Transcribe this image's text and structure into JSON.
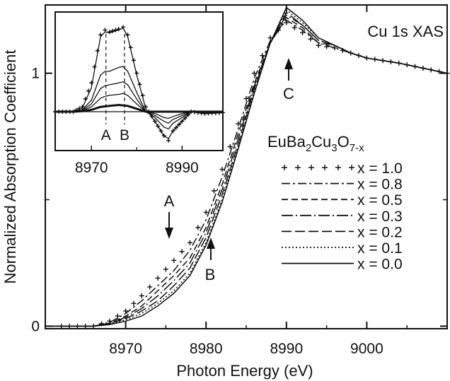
{
  "chart_data": {
    "type": "line",
    "xlabel": "Photon Energy (eV)",
    "ylabel": "Normalized Absorption Coefficient",
    "annotation_title": "Cu 1s XAS",
    "xlim": [
      8960,
      9010
    ],
    "ylim": [
      -0.01,
      1.27
    ],
    "x_ticks": [
      "8970",
      "8980",
      "8990",
      "9000"
    ],
    "y_ticks": [
      "0",
      "1"
    ],
    "arrow_labels": [
      "A",
      "B",
      "C"
    ],
    "legend_title": {
      "base": "EuBa",
      "s1": "2",
      "mid1": "Cu",
      "s2": "3",
      "mid2": "O",
      "s3": "7-x"
    },
    "series": [
      {
        "name": "x = 1.0",
        "style": "plus",
        "points": [
          [
            8960,
            0.0
          ],
          [
            8966,
            0.0
          ],
          [
            8968,
            0.02
          ],
          [
            8970,
            0.06
          ],
          [
            8972,
            0.12
          ],
          [
            8974,
            0.19
          ],
          [
            8976,
            0.26
          ],
          [
            8978,
            0.33
          ],
          [
            8980,
            0.45
          ],
          [
            8982,
            0.62
          ],
          [
            8984,
            0.8
          ],
          [
            8986,
            1.0
          ],
          [
            8988,
            1.14
          ],
          [
            8990,
            1.2
          ],
          [
            8992,
            1.16
          ],
          [
            8994,
            1.11
          ],
          [
            8996,
            1.1
          ],
          [
            8998,
            1.08
          ],
          [
            9000,
            1.06
          ],
          [
            9004,
            1.04
          ],
          [
            9010,
            1.0
          ]
        ]
      },
      {
        "name": "x = 0.8",
        "style": "dashdot",
        "points": [
          [
            8960,
            0.0
          ],
          [
            8966,
            0.0
          ],
          [
            8968,
            0.015
          ],
          [
            8970,
            0.05
          ],
          [
            8972,
            0.1
          ],
          [
            8974,
            0.16
          ],
          [
            8976,
            0.22
          ],
          [
            8978,
            0.3
          ],
          [
            8980,
            0.42
          ],
          [
            8982,
            0.59
          ],
          [
            8984,
            0.78
          ],
          [
            8986,
            0.98
          ],
          [
            8988,
            1.13
          ],
          [
            8990,
            1.21
          ],
          [
            8992,
            1.17
          ],
          [
            8994,
            1.12
          ],
          [
            8996,
            1.1
          ],
          [
            8998,
            1.08
          ],
          [
            9000,
            1.06
          ],
          [
            9004,
            1.04
          ],
          [
            9010,
            1.0
          ]
        ]
      },
      {
        "name": "x = 0.5",
        "style": "longdash",
        "points": [
          [
            8960,
            0.0
          ],
          [
            8966,
            0.0
          ],
          [
            8968,
            0.012
          ],
          [
            8970,
            0.04
          ],
          [
            8972,
            0.08
          ],
          [
            8974,
            0.14
          ],
          [
            8976,
            0.2
          ],
          [
            8978,
            0.27
          ],
          [
            8980,
            0.39
          ],
          [
            8982,
            0.56
          ],
          [
            8984,
            0.76
          ],
          [
            8986,
            0.96
          ],
          [
            8988,
            1.12
          ],
          [
            8990,
            1.22
          ],
          [
            8992,
            1.18
          ],
          [
            8994,
            1.12
          ],
          [
            8996,
            1.11
          ],
          [
            8998,
            1.08
          ],
          [
            9000,
            1.06
          ],
          [
            9004,
            1.04
          ],
          [
            9010,
            1.0
          ]
        ]
      },
      {
        "name": "x = 0.3",
        "style": "dashdot2",
        "points": [
          [
            8960,
            0.0
          ],
          [
            8966,
            0.0
          ],
          [
            8968,
            0.01
          ],
          [
            8970,
            0.035
          ],
          [
            8972,
            0.07
          ],
          [
            8974,
            0.12
          ],
          [
            8976,
            0.18
          ],
          [
            8978,
            0.25
          ],
          [
            8980,
            0.37
          ],
          [
            8982,
            0.54
          ],
          [
            8984,
            0.74
          ],
          [
            8986,
            0.95
          ],
          [
            8988,
            1.12
          ],
          [
            8990,
            1.23
          ],
          [
            8992,
            1.19
          ],
          [
            8994,
            1.13
          ],
          [
            8996,
            1.11
          ],
          [
            8998,
            1.08
          ],
          [
            9000,
            1.06
          ],
          [
            9004,
            1.04
          ],
          [
            9010,
            1.0
          ]
        ]
      },
      {
        "name": "x = 0.2",
        "style": "dash",
        "points": [
          [
            8960,
            0.0
          ],
          [
            8966,
            0.0
          ],
          [
            8968,
            0.01
          ],
          [
            8970,
            0.03
          ],
          [
            8972,
            0.06
          ],
          [
            8974,
            0.1
          ],
          [
            8976,
            0.16
          ],
          [
            8978,
            0.23
          ],
          [
            8980,
            0.35
          ],
          [
            8982,
            0.52
          ],
          [
            8984,
            0.72
          ],
          [
            8986,
            0.94
          ],
          [
            8988,
            1.12
          ],
          [
            8990,
            1.24
          ],
          [
            8992,
            1.19
          ],
          [
            8994,
            1.13
          ],
          [
            8996,
            1.11
          ],
          [
            8998,
            1.08
          ],
          [
            9000,
            1.06
          ],
          [
            9004,
            1.04
          ],
          [
            9010,
            1.0
          ]
        ]
      },
      {
        "name": "x = 0.1",
        "style": "dotted",
        "points": [
          [
            8960,
            0.0
          ],
          [
            8966,
            0.0
          ],
          [
            8968,
            0.008
          ],
          [
            8970,
            0.025
          ],
          [
            8972,
            0.05
          ],
          [
            8974,
            0.09
          ],
          [
            8976,
            0.14
          ],
          [
            8978,
            0.21
          ],
          [
            8980,
            0.33
          ],
          [
            8982,
            0.5
          ],
          [
            8984,
            0.71
          ],
          [
            8986,
            0.93
          ],
          [
            8988,
            1.12
          ],
          [
            8990,
            1.25
          ],
          [
            8992,
            1.2
          ],
          [
            8994,
            1.14
          ],
          [
            8996,
            1.11
          ],
          [
            8998,
            1.08
          ],
          [
            9000,
            1.06
          ],
          [
            9004,
            1.04
          ],
          [
            9010,
            1.0
          ]
        ]
      },
      {
        "name": "x = 0.0",
        "style": "solid",
        "points": [
          [
            8960,
            0.0
          ],
          [
            8966,
            0.0
          ],
          [
            8968,
            0.006
          ],
          [
            8970,
            0.02
          ],
          [
            8972,
            0.04
          ],
          [
            8974,
            0.08
          ],
          [
            8976,
            0.13
          ],
          [
            8978,
            0.2
          ],
          [
            8980,
            0.32
          ],
          [
            8982,
            0.49
          ],
          [
            8984,
            0.7
          ],
          [
            8986,
            0.92
          ],
          [
            8988,
            1.12
          ],
          [
            8990,
            1.26
          ],
          [
            8992,
            1.21
          ],
          [
            8994,
            1.14
          ],
          [
            8996,
            1.11
          ],
          [
            8998,
            1.08
          ],
          [
            9000,
            1.06
          ],
          [
            9004,
            1.04
          ],
          [
            9010,
            1.0
          ]
        ]
      }
    ],
    "inset": {
      "type": "line",
      "xlim": [
        8962,
        8999
      ],
      "x_ticks": [
        "8970",
        "8990"
      ],
      "markers": [
        "A",
        "B"
      ],
      "series": [
        {
          "style": "plus",
          "points": [
            [
              8962,
              0
            ],
            [
              8966,
              0.0
            ],
            [
              8968,
              0.05
            ],
            [
              8970,
              0.3
            ],
            [
              8972,
              0.8
            ],
            [
              8973,
              0.85
            ],
            [
              8974,
              0.83
            ],
            [
              8976,
              0.86
            ],
            [
              8977,
              0.88
            ],
            [
              8978,
              0.8
            ],
            [
              8980,
              0.4
            ],
            [
              8982,
              0.05
            ],
            [
              8984,
              -0.1
            ],
            [
              8986,
              -0.25
            ],
            [
              8987,
              -0.3
            ],
            [
              8988,
              -0.2
            ],
            [
              8990,
              -0.1
            ],
            [
              8992,
              0.0
            ],
            [
              8995,
              -0.02
            ],
            [
              8999,
              -0.01
            ]
          ]
        },
        {
          "style": "solid",
          "points": [
            [
              8962,
              0
            ],
            [
              8966,
              0.0
            ],
            [
              8968,
              0.04
            ],
            [
              8970,
              0.25
            ],
            [
              8972,
              0.78
            ],
            [
              8973,
              0.83
            ],
            [
              8974,
              0.82
            ],
            [
              8976,
              0.85
            ],
            [
              8977,
              0.87
            ],
            [
              8978,
              0.78
            ],
            [
              8980,
              0.38
            ],
            [
              8982,
              0.03
            ],
            [
              8984,
              -0.1
            ],
            [
              8986,
              -0.25
            ],
            [
              8987,
              -0.28
            ],
            [
              8988,
              -0.2
            ],
            [
              8990,
              -0.1
            ],
            [
              8992,
              0.0
            ],
            [
              8995,
              -0.02
            ],
            [
              8999,
              -0.01
            ]
          ]
        },
        {
          "style": "solid",
          "points": [
            [
              8962,
              0
            ],
            [
              8966,
              0.0
            ],
            [
              8968,
              0.02
            ],
            [
              8970,
              0.12
            ],
            [
              8972,
              0.38
            ],
            [
              8973,
              0.42
            ],
            [
              8974,
              0.42
            ],
            [
              8976,
              0.46
            ],
            [
              8977,
              0.47
            ],
            [
              8978,
              0.42
            ],
            [
              8980,
              0.2
            ],
            [
              8982,
              0.0
            ],
            [
              8984,
              -0.06
            ],
            [
              8986,
              -0.16
            ],
            [
              8987,
              -0.18
            ],
            [
              8988,
              -0.12
            ],
            [
              8990,
              -0.06
            ],
            [
              8992,
              0.0
            ],
            [
              8995,
              -0.02
            ],
            [
              8999,
              -0.01
            ]
          ]
        },
        {
          "style": "solid",
          "points": [
            [
              8962,
              0
            ],
            [
              8966,
              0.0
            ],
            [
              8968,
              0.015
            ],
            [
              8970,
              0.08
            ],
            [
              8972,
              0.24
            ],
            [
              8973,
              0.27
            ],
            [
              8974,
              0.28
            ],
            [
              8976,
              0.3
            ],
            [
              8977,
              0.31
            ],
            [
              8978,
              0.28
            ],
            [
              8980,
              0.13
            ],
            [
              8982,
              0.0
            ],
            [
              8984,
              -0.04
            ],
            [
              8986,
              -0.1
            ],
            [
              8987,
              -0.12
            ],
            [
              8988,
              -0.08
            ],
            [
              8990,
              -0.04
            ],
            [
              8992,
              0.0
            ],
            [
              8995,
              -0.02
            ],
            [
              8999,
              -0.01
            ]
          ]
        },
        {
          "style": "solid",
          "points": [
            [
              8962,
              0
            ],
            [
              8966,
              0.0
            ],
            [
              8968,
              0.01
            ],
            [
              8970,
              0.05
            ],
            [
              8972,
              0.14
            ],
            [
              8973,
              0.16
            ],
            [
              8974,
              0.17
            ],
            [
              8976,
              0.18
            ],
            [
              8977,
              0.19
            ],
            [
              8978,
              0.17
            ],
            [
              8980,
              0.08
            ],
            [
              8982,
              0.0
            ],
            [
              8984,
              -0.02
            ],
            [
              8986,
              -0.06
            ],
            [
              8987,
              -0.07
            ],
            [
              8988,
              -0.05
            ],
            [
              8990,
              -0.02
            ],
            [
              8992,
              0.0
            ],
            [
              8995,
              -0.01
            ],
            [
              8999,
              0.0
            ]
          ]
        },
        {
          "style": "thick",
          "points": [
            [
              8962,
              0.0
            ],
            [
              8966,
              0.0
            ],
            [
              8968,
              0.005
            ],
            [
              8970,
              0.02
            ],
            [
              8972,
              0.05
            ],
            [
              8974,
              0.06
            ],
            [
              8976,
              0.07
            ],
            [
              8978,
              0.06
            ],
            [
              8980,
              0.03
            ],
            [
              8982,
              0.0
            ],
            [
              8984,
              0.0
            ],
            [
              8986,
              0.0
            ],
            [
              8990,
              0.0
            ],
            [
              8995,
              0.0
            ],
            [
              8999,
              0.0
            ]
          ]
        }
      ]
    }
  }
}
